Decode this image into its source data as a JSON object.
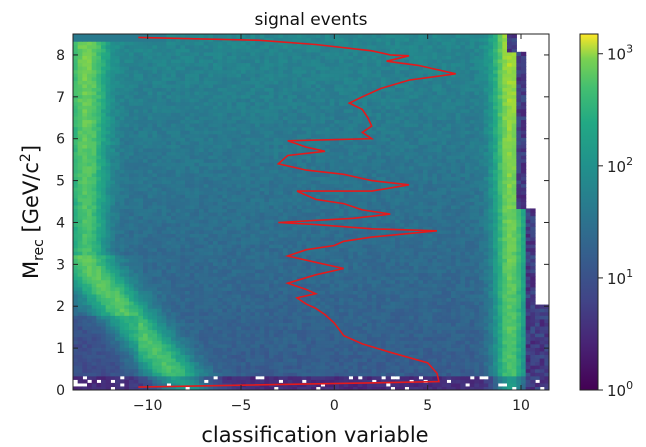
{
  "chart_data": {
    "type": "heatmap",
    "title": "signal events",
    "xlabel": "classification variable",
    "ylabel_main": "M",
    "ylabel_sub": "rec",
    "ylabel_units": " [GeV/c",
    "ylabel_sup": "2",
    "ylabel_close": "]",
    "xlim": [
      -14,
      11.5
    ],
    "ylim": [
      0,
      8.5
    ],
    "xticks": [
      {
        "value": -10,
        "label": "−10"
      },
      {
        "value": -5,
        "label": "−5"
      },
      {
        "value": 0,
        "label": "0"
      },
      {
        "value": 5,
        "label": "5"
      },
      {
        "value": 10,
        "label": "10"
      }
    ],
    "yticks": [
      {
        "value": 0,
        "label": "0"
      },
      {
        "value": 1,
        "label": "1"
      },
      {
        "value": 2,
        "label": "2"
      },
      {
        "value": 3,
        "label": "3"
      },
      {
        "value": 4,
        "label": "4"
      },
      {
        "value": 5,
        "label": "5"
      },
      {
        "value": 6,
        "label": "6"
      },
      {
        "value": 7,
        "label": "7"
      },
      {
        "value": 8,
        "label": "8"
      }
    ],
    "colorbar": {
      "scale": "log",
      "range": [
        1,
        1500
      ],
      "colormap": "viridis",
      "ticks": [
        {
          "value": 1,
          "base": "10",
          "exp": "0"
        },
        {
          "value": 10,
          "base": "10",
          "exp": "1"
        },
        {
          "value": 100,
          "base": "10",
          "exp": "2"
        },
        {
          "value": 1000,
          "base": "10",
          "exp": "3"
        }
      ]
    },
    "overlay_line": {
      "color": "#e41a1c",
      "points": [
        [
          -10.5,
          8.42
        ],
        [
          -4,
          8.35
        ],
        [
          -1,
          8.25
        ],
        [
          2,
          8.1
        ],
        [
          3,
          8.0
        ],
        [
          4,
          7.98
        ],
        [
          2.8,
          7.85
        ],
        [
          4.5,
          7.75
        ],
        [
          6.5,
          7.55
        ],
        [
          4,
          7.4
        ],
        [
          2.5,
          7.2
        ],
        [
          1.5,
          7.0
        ],
        [
          0.8,
          6.85
        ],
        [
          1.5,
          6.7
        ],
        [
          1.8,
          6.5
        ],
        [
          2,
          6.3
        ],
        [
          1.5,
          6.15
        ],
        [
          2,
          6.0
        ],
        [
          -2.5,
          5.95
        ],
        [
          -1.5,
          5.8
        ],
        [
          -0.5,
          5.7
        ],
        [
          -2.5,
          5.6
        ],
        [
          -3,
          5.4
        ],
        [
          -1.5,
          5.25
        ],
        [
          0.5,
          5.15
        ],
        [
          2,
          5.0
        ],
        [
          4,
          4.9
        ],
        [
          2,
          4.75
        ],
        [
          -2,
          4.75
        ],
        [
          -1,
          4.55
        ],
        [
          0.5,
          4.45
        ],
        [
          1.5,
          4.3
        ],
        [
          3,
          4.2
        ],
        [
          1,
          4.1
        ],
        [
          -3,
          4.0
        ],
        [
          -1,
          3.95
        ],
        [
          2,
          3.85
        ],
        [
          5.5,
          3.8
        ],
        [
          2,
          3.65
        ],
        [
          0.5,
          3.55
        ],
        [
          0,
          3.45
        ],
        [
          -1.5,
          3.35
        ],
        [
          -2.5,
          3.2
        ],
        [
          -1,
          3.05
        ],
        [
          0.5,
          2.9
        ],
        [
          -1,
          2.75
        ],
        [
          -2.5,
          2.55
        ],
        [
          -1.5,
          2.4
        ],
        [
          -1,
          2.3
        ],
        [
          -2,
          2.2
        ],
        [
          -1.5,
          2.05
        ],
        [
          -1,
          1.95
        ],
        [
          -0.5,
          1.8
        ],
        [
          0,
          1.6
        ],
        [
          0.5,
          1.3
        ],
        [
          1.5,
          1.1
        ],
        [
          3,
          0.9
        ],
        [
          5,
          0.65
        ],
        [
          5.5,
          0.4
        ],
        [
          5.6,
          0.2
        ],
        [
          -10.5,
          0.07
        ]
      ]
    }
  }
}
